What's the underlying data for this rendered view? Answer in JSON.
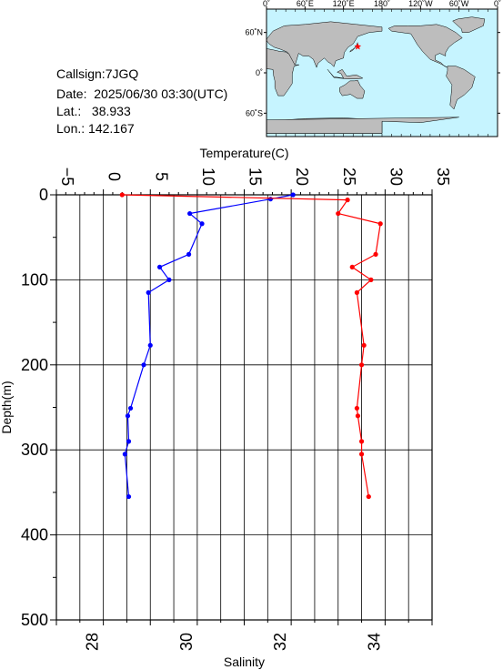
{
  "station": {
    "callsign_label": "Callsign:",
    "callsign": "7JGQ",
    "date_label": "Date:",
    "date": "2025/06/30 03:30(UTC)",
    "lat_label": "Lat.:",
    "lat": "38.933",
    "lon_label": "Lon.:",
    "lon": "142.167"
  },
  "map": {
    "lon_labels": [
      "0˚",
      "60˚E",
      "120˚E",
      "180˚",
      "120˚W",
      "60˚W",
      "0˚"
    ],
    "lat_labels": [
      "60˚N",
      "0˚",
      "60˚S"
    ],
    "ocean_color": "#c6f4ff",
    "land_color": "#bdbdbd",
    "marker_color": "#ff0000",
    "marker": {
      "lon": 142.167,
      "lat": 38.933
    }
  },
  "chart_data": {
    "type": "line",
    "y_axis": {
      "label": "Depth(m)",
      "range": [
        0,
        500
      ],
      "inverted": true,
      "ticks": [
        "0",
        "100",
        "200",
        "300",
        "400",
        "500"
      ]
    },
    "x_axis_top": {
      "label": "Temperature(C)",
      "range": [
        -5,
        35
      ],
      "ticks": [
        "−5",
        "0",
        "5",
        "10",
        "15",
        "20",
        "25",
        "30",
        "35"
      ]
    },
    "x_axis_bottom": {
      "label": "Salinity",
      "range": [
        27,
        35
      ],
      "ticks": [
        "28",
        "30",
        "32",
        "34"
      ]
    },
    "grid": true,
    "series": [
      {
        "axis": "temperature",
        "color": "#0000ff",
        "points": [
          {
            "x": 20.2,
            "y": 0
          },
          {
            "x": 17.8,
            "y": 5
          },
          {
            "x": 9.2,
            "y": 22
          },
          {
            "x": 10.5,
            "y": 34
          },
          {
            "x": 9.1,
            "y": 70
          },
          {
            "x": 6.0,
            "y": 85
          },
          {
            "x": 7.0,
            "y": 100
          },
          {
            "x": 4.8,
            "y": 115
          },
          {
            "x": 5.0,
            "y": 177
          },
          {
            "x": 4.3,
            "y": 200
          },
          {
            "x": 2.9,
            "y": 251
          },
          {
            "x": 2.6,
            "y": 260
          },
          {
            "x": 2.7,
            "y": 290
          },
          {
            "x": 2.3,
            "y": 305
          },
          {
            "x": 2.7,
            "y": 355
          }
        ]
      },
      {
        "axis": "salinity",
        "color": "#ff0000",
        "points": [
          {
            "x": 28.4,
            "y": 0
          },
          {
            "x": 33.2,
            "y": 6
          },
          {
            "x": 33.0,
            "y": 22
          },
          {
            "x": 33.9,
            "y": 34
          },
          {
            "x": 33.8,
            "y": 70
          },
          {
            "x": 33.3,
            "y": 85
          },
          {
            "x": 33.7,
            "y": 100
          },
          {
            "x": 33.4,
            "y": 115
          },
          {
            "x": 33.55,
            "y": 177
          },
          {
            "x": 33.5,
            "y": 200
          },
          {
            "x": 33.4,
            "y": 251
          },
          {
            "x": 33.42,
            "y": 260
          },
          {
            "x": 33.5,
            "y": 290
          },
          {
            "x": 33.5,
            "y": 305
          },
          {
            "x": 33.65,
            "y": 355
          }
        ]
      }
    ]
  }
}
